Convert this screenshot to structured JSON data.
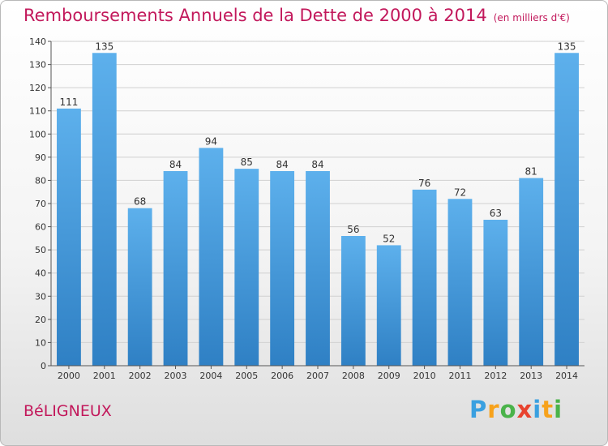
{
  "header": {
    "title": "Remboursements Annuels de la Dette de 2000 à 2014",
    "unit": "(en milliers d'€)"
  },
  "commune": "BéLIGNEUX",
  "logo": {
    "letters": [
      "P",
      "r",
      "o",
      "x",
      "i",
      "t",
      "i"
    ],
    "colors": [
      "#3aa0e0",
      "#f7a21b",
      "#4ab34a",
      "#e8432f",
      "#3aa0e0",
      "#f7a21b",
      "#4ab34a"
    ]
  },
  "chart_data": {
    "type": "bar",
    "title": "Remboursements Annuels de la Dette de 2000 à 2014",
    "xlabel": "",
    "ylabel": "",
    "categories": [
      "2000",
      "2001",
      "2002",
      "2003",
      "2004",
      "2005",
      "2006",
      "2007",
      "2008",
      "2009",
      "2010",
      "2011",
      "2012",
      "2013",
      "2014"
    ],
    "values": [
      111,
      135,
      68,
      84,
      94,
      85,
      84,
      84,
      56,
      52,
      76,
      72,
      63,
      81,
      135
    ],
    "ylim": [
      0,
      140
    ],
    "yticks": [
      0,
      10,
      20,
      30,
      40,
      50,
      60,
      70,
      80,
      90,
      100,
      110,
      120,
      130,
      140
    ],
    "grid": true,
    "bar_color": "#4a9fe0"
  }
}
